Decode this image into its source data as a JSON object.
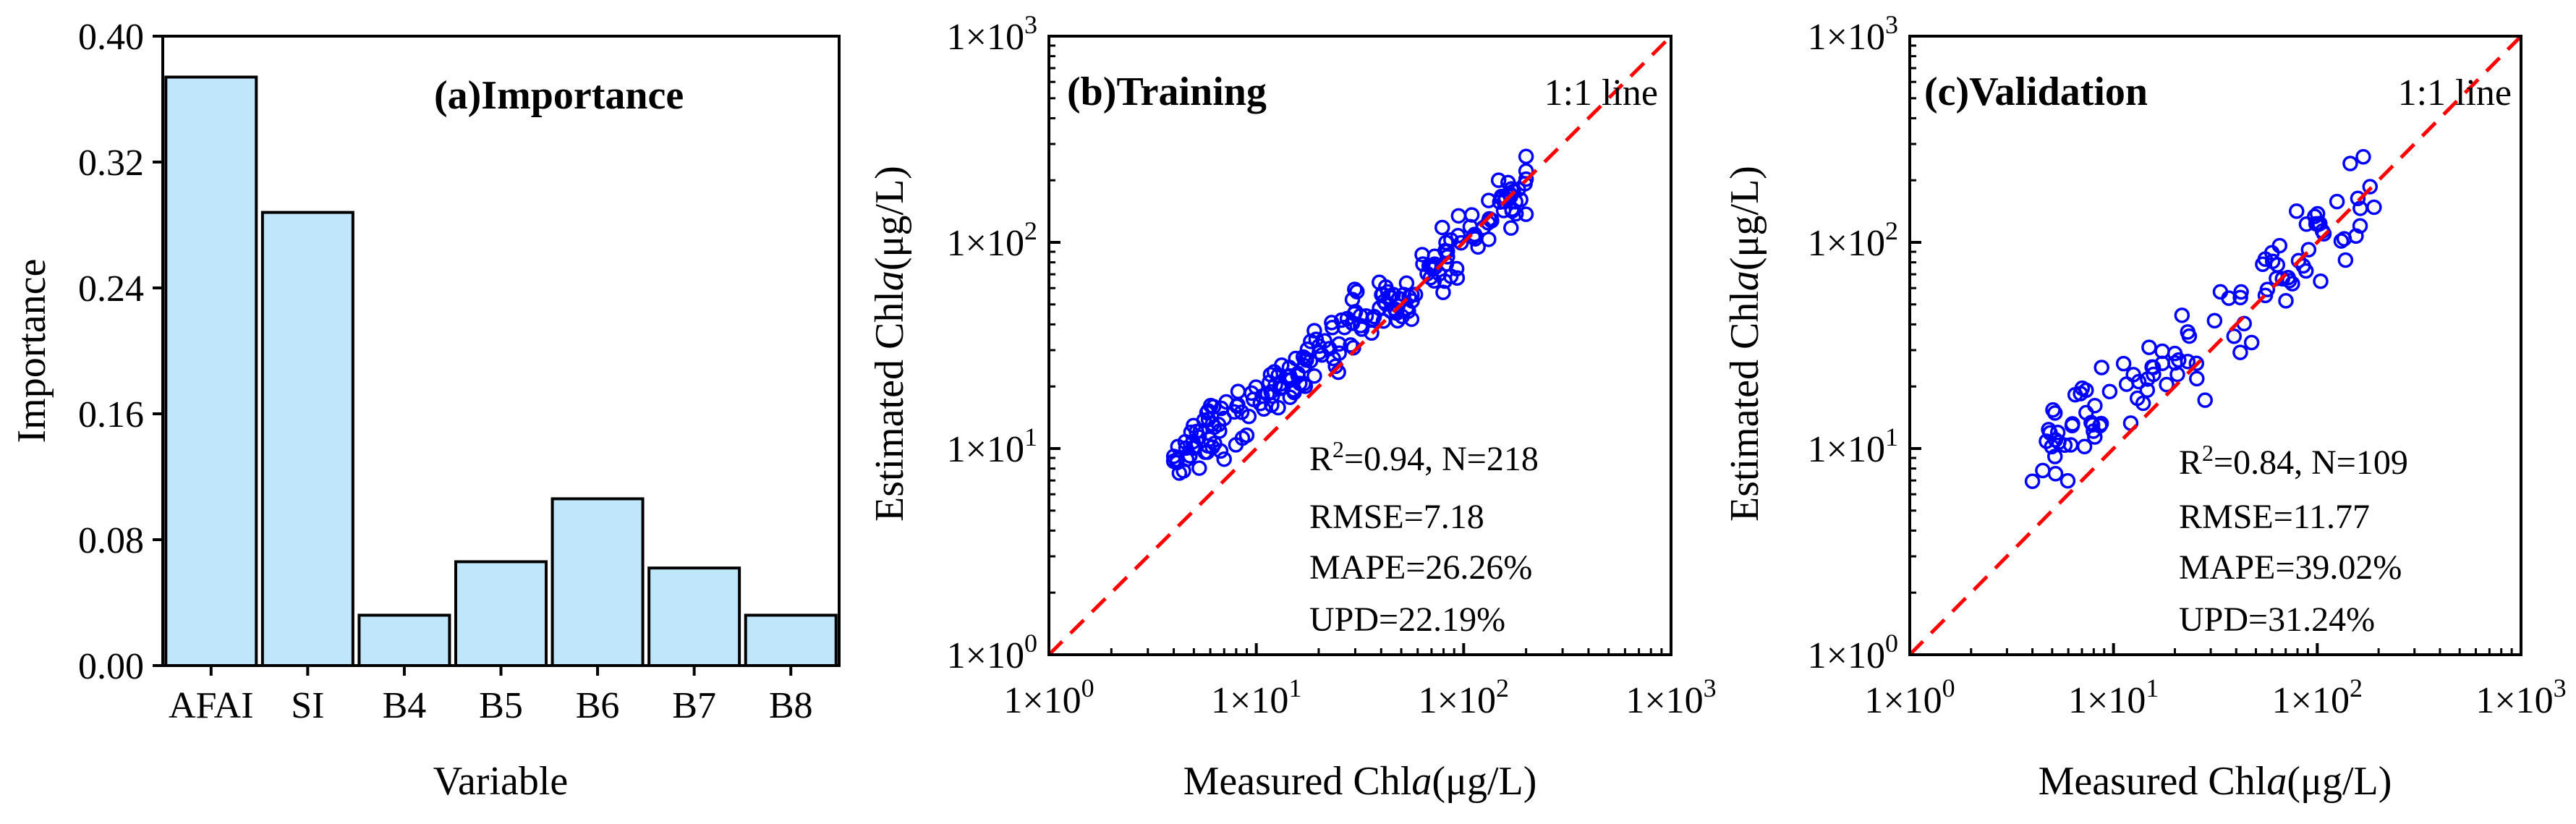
{
  "chart_data": [
    {
      "type": "bar",
      "title": "(a)Importance",
      "xlabel": "Variable",
      "ylabel": "Importance",
      "categories": [
        "AFAI",
        "SI",
        "B4",
        "B5",
        "B6",
        "B7",
        "B8"
      ],
      "values": [
        0.374,
        0.288,
        0.032,
        0.066,
        0.106,
        0.062,
        0.032
      ],
      "ylim": [
        0,
        0.4
      ],
      "yticks": [
        "0.00",
        "0.08",
        "0.16",
        "0.24",
        "0.32",
        "0.40"
      ],
      "bar_color": "#bfe6fb",
      "grid": false
    },
    {
      "type": "scatter",
      "title": "(b)Training",
      "xlabel_prefix": "Measured Chl",
      "xlabel_italic": "a",
      "xlabel_unit": "(μg/L)",
      "ylabel_prefix": "Estimated Chl",
      "ylabel_italic": "a",
      "ylabel_unit": "(μg/L)",
      "scale": "log",
      "xlim": [
        1,
        1000
      ],
      "ylim": [
        1,
        1000
      ],
      "ticks": [
        {
          "mant": "1×10",
          "exp": "0"
        },
        {
          "mant": "1×10",
          "exp": "1"
        },
        {
          "mant": "1×10",
          "exp": "2"
        },
        {
          "mant": "1×10",
          "exp": "3"
        }
      ],
      "reference_line": "1:1 line",
      "marker_color": "#0000ff",
      "line_color": "#ff0000",
      "n_points": 218,
      "seed": 7,
      "x_range": [
        4,
        200
      ],
      "bias_at_low": 0.34,
      "noise_sd": 0.085,
      "stats": {
        "r2": "R²=0.94, N=218",
        "r2_prefix": "R",
        "r2_exp": "2",
        "r2_rest": "=0.94, N=218",
        "rmse": "RMSE=7.18",
        "mape": "MAPE=26.26%",
        "upd": "UPD=22.19%"
      }
    },
    {
      "type": "scatter",
      "title": "(c)Validation",
      "xlabel_prefix": "Measured Chl",
      "xlabel_italic": "a",
      "xlabel_unit": "(μg/L)",
      "ylabel_prefix": "Estimated Chl",
      "ylabel_italic": "a",
      "ylabel_unit": "(μg/L)",
      "scale": "log",
      "xlim": [
        1,
        1000
      ],
      "ylim": [
        1,
        1000
      ],
      "ticks": [
        {
          "mant": "1×10",
          "exp": "0"
        },
        {
          "mant": "1×10",
          "exp": "1"
        },
        {
          "mant": "1×10",
          "exp": "2"
        },
        {
          "mant": "1×10",
          "exp": "3"
        }
      ],
      "reference_line": "1:1 line",
      "marker_color": "#0000ff",
      "line_color": "#ff0000",
      "n_points": 109,
      "seed": 21,
      "x_range": [
        4,
        190
      ],
      "bias_at_low": 0.36,
      "noise_sd": 0.11,
      "stats": {
        "r2": "R²=0.84, N=109",
        "r2_prefix": "R",
        "r2_exp": "2",
        "r2_rest": "=0.84, N=109",
        "rmse": "RMSE=11.77",
        "mape": "MAPE=39.02%",
        "upd": "UPD=31.24%"
      }
    }
  ]
}
